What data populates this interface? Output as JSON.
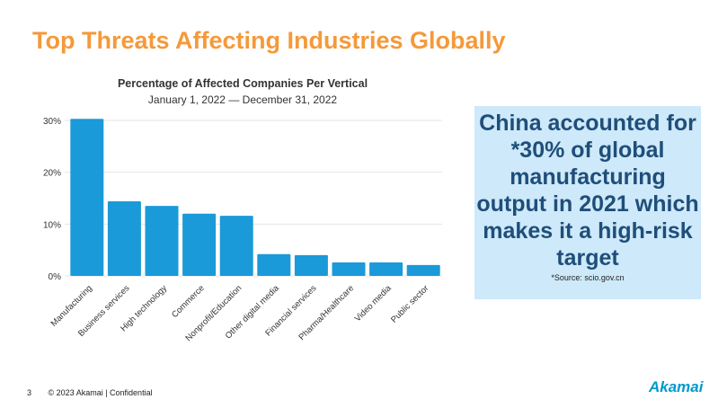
{
  "slide_title": "Top Threats Affecting Industries Globally",
  "chart_data": {
    "type": "bar",
    "title": "Percentage of Affected Companies Per Vertical",
    "subtitle": "January 1, 2022 — December 31, 2022",
    "categories": [
      "Manufacturing",
      "Business services",
      "High technology",
      "Commerce",
      "Nonprofit/Education",
      "Other digital media",
      "Financial services",
      "Pharma/Healthcare",
      "Video media",
      "Public sector"
    ],
    "values": [
      30.3,
      14.4,
      13.5,
      12.0,
      11.6,
      4.2,
      4.0,
      2.6,
      2.6,
      2.1
    ],
    "yticks": [
      "0%",
      "10%",
      "20%",
      "30%"
    ],
    "ylim": [
      0,
      30
    ],
    "grid": true,
    "bar_color": "#1a9ad9"
  },
  "callout": {
    "text": "China accounted for *30% of global manufacturing output in 2021 which makes it a high-risk target",
    "source": "*Source: scio.gov.cn"
  },
  "footer": {
    "page": "3",
    "copyright": "© 2023 Akamai | Confidential"
  },
  "logo": "Akamai",
  "colors": {
    "title": "#f5993a",
    "callout_bg": "#cde9fa",
    "callout_text": "#1f4e79"
  }
}
